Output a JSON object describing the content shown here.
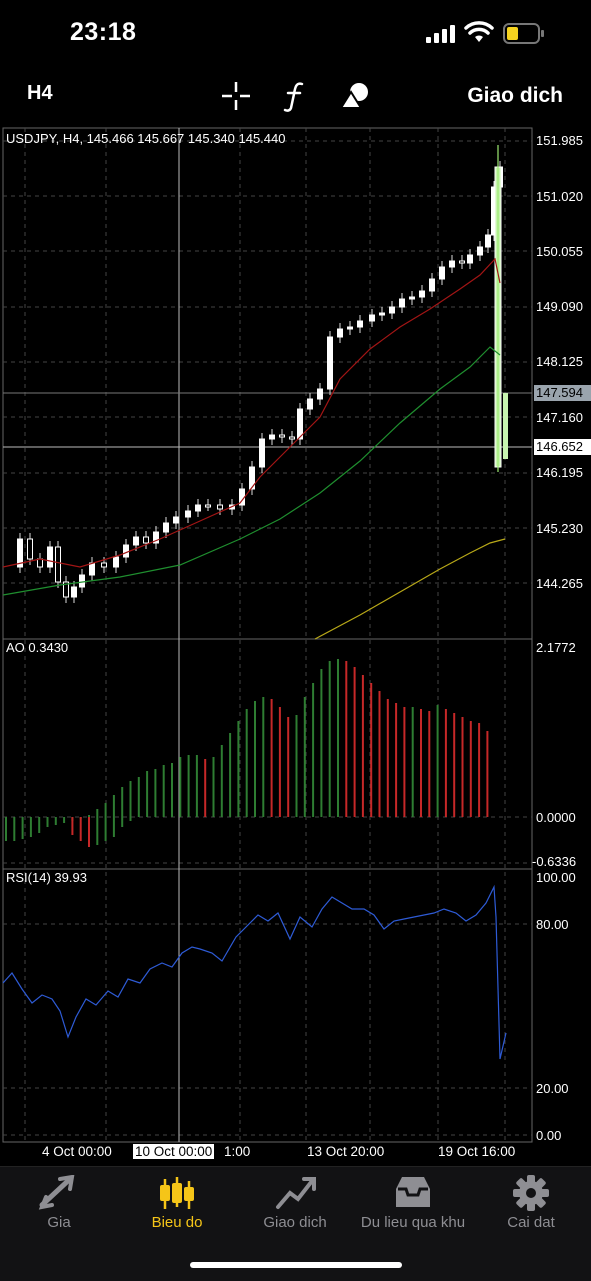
{
  "status": {
    "time": "23:18"
  },
  "toolbar": {
    "timeframe": "H4",
    "crosshair_icon": "crosshair-icon",
    "indicator_icon": "function-icon",
    "objects_icon": "shapes-icon",
    "trade_label": "Giao dich"
  },
  "chart": {
    "symbol_line": "USDJPY, H4, 145.466 145.667 145.340 145.440",
    "price_ticks": [
      "151.985",
      "151.020",
      "150.055",
      "149.090",
      "148.125",
      "147.160",
      "146.195",
      "145.230",
      "144.265"
    ],
    "bid_tag": "147.594",
    "cross_tag": "146.652",
    "ao_label": "AO 0.3430",
    "ao_ticks": [
      "2.1772",
      "0.0000",
      "-0.6336"
    ],
    "rsi_label": "RSI(14) 39.93",
    "rsi_ticks": [
      "100.00",
      "80.00",
      "20.00",
      "0.00"
    ],
    "x_labels": [
      "4 Oct 00:00",
      "10 Oct 00:00",
      "1:00",
      "13 Oct 20:00",
      "19 Oct 16:00"
    ],
    "colors": {
      "bull": "#2e7d32",
      "bear": "#c62828",
      "candle_up": "#ffffff",
      "last_candle": "#c8f5b0",
      "ma_red": "#a31515",
      "ma_green": "#1f8f2f",
      "ma_yellow": "#b8a818",
      "rsi": "#2e5bd6",
      "grid": "#444444"
    }
  },
  "tabs": [
    {
      "label": "Gia",
      "icon": "trend-arrows-icon"
    },
    {
      "label": "Bieu do",
      "icon": "candlestick-icon"
    },
    {
      "label": "Giao dich",
      "icon": "trade-chart-icon"
    },
    {
      "label": "Du lieu qua khu",
      "icon": "history-tray-icon"
    },
    {
      "label": "Cai dat",
      "icon": "gear-icon"
    }
  ]
}
